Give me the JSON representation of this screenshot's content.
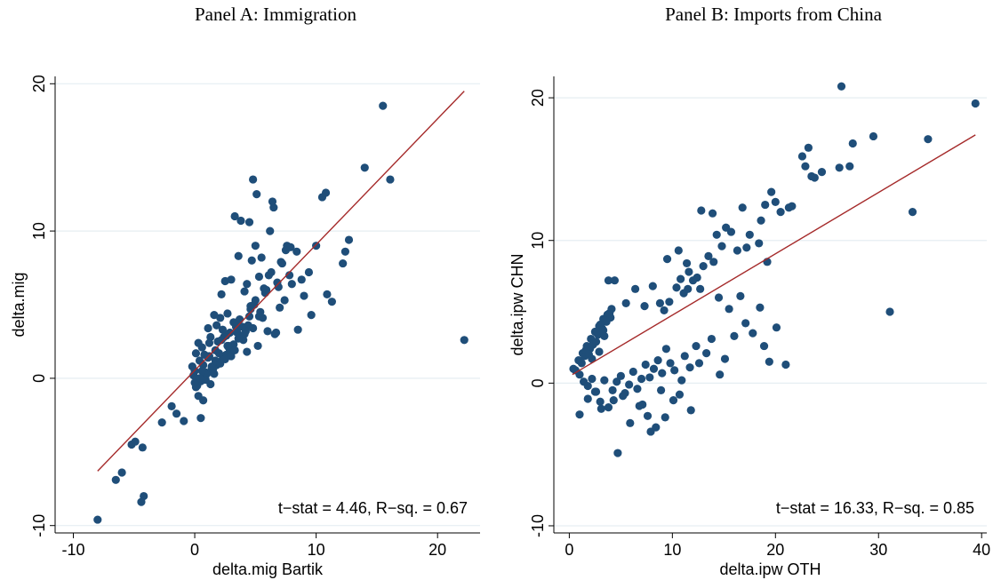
{
  "panels": [
    {
      "title": "Panel A: Immigration"
    },
    {
      "title": "Panel B: Imports from China"
    }
  ],
  "colors": {
    "marker": "#1f4e79",
    "fit": "#a52a2a",
    "grid": "#e6eef2"
  },
  "chart_data": [
    {
      "type": "scatter",
      "title": "Panel A: Immigration",
      "xlabel": "delta.mig Bartik",
      "ylabel": "delta.mig",
      "xlim": [
        -11.5,
        23.5
      ],
      "ylim": [
        -10.5,
        20.5
      ],
      "xticks": [
        -10,
        0,
        10,
        20
      ],
      "yticks": [
        -10,
        0,
        10,
        20
      ],
      "grid": true,
      "annotation": "t−stat = 4.46, R−sq. = 0.67",
      "fit_line": {
        "x": [
          -8,
          22.2
        ],
        "y": [
          -6.3,
          19.5
        ]
      },
      "points": {
        "x": [
          -8,
          -6.5,
          -6,
          -5.2,
          -4.9,
          -4.3,
          -4.2,
          -4.4,
          -2.7,
          -1.9,
          -1.5,
          -0.9,
          0.5,
          15.5,
          16.1,
          14,
          22.2,
          10.8,
          10.5,
          12.7,
          12.4,
          12.2,
          11.3,
          10.9,
          10,
          9.6,
          8.4,
          8,
          7.8,
          7.6,
          7.2,
          6.9,
          6.5,
          6.4,
          6.2,
          5.8,
          5.5,
          5.1,
          5,
          4.8,
          4.7,
          4.5,
          4.3,
          4.1,
          3.8,
          3.6,
          3.3,
          3,
          2.7,
          2.5,
          2.2,
          9,
          8.5,
          7.4,
          7,
          6.6,
          6,
          5.6,
          5.3,
          5.2,
          4.9,
          4.6,
          4.4,
          4.2,
          3.9,
          3.7,
          3.4,
          3.2,
          2.9,
          2.6,
          2.3,
          2.1,
          1.8,
          1.6,
          1.3,
          1.1,
          0.8,
          0.6,
          0.3,
          0.1,
          -0.2,
          0,
          0.4,
          0.7,
          0.9,
          1.2,
          1.4,
          1.7,
          1.9,
          2.4,
          2.8,
          3.1,
          3.5,
          4,
          4.3,
          4.8,
          5.4,
          5.9,
          6.3,
          6.8,
          7.1,
          7.9,
          8.8,
          9.4,
          0.2,
          0.5,
          0.8,
          1,
          1.3,
          1.5,
          1.8,
          2,
          2.3,
          2.6,
          2.9,
          3.2,
          3.6,
          4.1,
          4.5,
          5,
          5.7,
          6.1,
          -0.1,
          0.1,
          0.3,
          0.6,
          0.9,
          1.1,
          1.4,
          1.7,
          2,
          2.2,
          2.5,
          2.8,
          3,
          3.3,
          3.9,
          0,
          0.4,
          0.7,
          1.2,
          1.6,
          2.1,
          2.7,
          3.4,
          4.6,
          5.3,
          6.7,
          7.5
        ],
        "y": [
          -9.6,
          -6.9,
          -6.4,
          -4.5,
          -4.3,
          -4.7,
          -8,
          -8.4,
          -3,
          -1.9,
          -2.4,
          -2.9,
          -2.7,
          18.5,
          13.5,
          14.3,
          2.6,
          12.6,
          12.3,
          9.4,
          8.6,
          7.8,
          5.2,
          5.7,
          9,
          4.3,
          8.6,
          6.4,
          7,
          9,
          7.8,
          6.2,
          11.6,
          12,
          10,
          5.8,
          8.2,
          12.5,
          9,
          13.5,
          8,
          10.6,
          6.4,
          5.9,
          10.7,
          8.3,
          11,
          6.7,
          4.4,
          6.6,
          5.7,
          5.6,
          3.3,
          5.3,
          4.8,
          3,
          3.2,
          4.1,
          4.2,
          2.2,
          5,
          4.7,
          3.6,
          3.2,
          2.8,
          4,
          3.5,
          3.8,
          3.1,
          2.9,
          3.3,
          4.1,
          3.6,
          4.3,
          2.8,
          3.4,
          1.6,
          2.1,
          2.4,
          1.7,
          0.8,
          0.5,
          1.2,
          0.9,
          0.4,
          1.5,
          0.7,
          1.9,
          2.5,
          2.8,
          2.2,
          2,
          3.1,
          2.6,
          1.8,
          3.4,
          4.5,
          6,
          7.2,
          6.5,
          7.9,
          8.9,
          6.7,
          7.2,
          -0.5,
          -0.2,
          0.1,
          0.3,
          -0.4,
          0.6,
          0.9,
          1.1,
          1.3,
          1.6,
          1.9,
          2.3,
          2.7,
          3,
          4.2,
          5.3,
          6.1,
          7,
          0.2,
          -0.6,
          -1.2,
          0.5,
          -0.1,
          1.4,
          0.8,
          1.2,
          1.7,
          2.6,
          1.3,
          2.1,
          1.5,
          1.9,
          3.5,
          -0.3,
          0,
          -1.5,
          2.4,
          0.3,
          1,
          2.2,
          3.7,
          4.9,
          6.9,
          3.1,
          8.7
        ]
      }
    },
    {
      "type": "scatter",
      "title": "Panel B: Imports from China",
      "xlabel": "delta.ipw OTH",
      "ylabel": "delta.ipw CHN",
      "xlim": [
        -1.5,
        40.5
      ],
      "ylim": [
        -10.5,
        21.5
      ],
      "xticks": [
        0,
        10,
        20,
        30,
        40
      ],
      "yticks": [
        -10,
        0,
        10,
        20
      ],
      "grid": true,
      "annotation": "t−stat = 16.33, R−sq. = 0.85",
      "fit_line": {
        "x": [
          0.3,
          39.4
        ],
        "y": [
          0.6,
          17.4
        ]
      },
      "points": {
        "x": [
          39.4,
          26.4,
          29.5,
          34.8,
          33.3,
          31.1,
          27.5,
          26.2,
          27.2,
          24.5,
          23.8,
          23.2,
          22.6,
          22.9,
          23.5,
          21.6,
          21.3,
          20.5,
          20,
          19.6,
          19,
          19.2,
          18.4,
          18.6,
          17.5,
          17.2,
          16.8,
          16.3,
          15.7,
          15.2,
          14.8,
          14.3,
          14,
          13.5,
          13,
          12.4,
          12,
          11.5,
          11.1,
          10.8,
          10.4,
          9.7,
          9.2,
          8.8,
          3.8,
          21,
          20.1,
          18.5,
          16.6,
          15.5,
          14.5,
          12.7,
          11.6,
          11.4,
          19.4,
          17.8,
          18.9,
          17.1,
          16,
          15.1,
          14.6,
          13.8,
          13.3,
          12.6,
          12.3,
          11.7,
          11.2,
          10.9,
          10.2,
          9.8,
          9.4,
          9,
          8.6,
          8.2,
          7.8,
          7.4,
          7,
          6.6,
          6.2,
          5.8,
          5.4,
          5,
          4.6,
          4.2,
          3.8,
          3.4,
          3,
          2.6,
          2.2,
          1.8,
          1.4,
          1,
          0.6,
          0.4,
          0.9,
          1.3,
          1.7,
          2.1,
          2.5,
          2.9,
          3.3,
          3.7,
          4.1,
          1.5,
          2,
          2.4,
          2.8,
          3.2,
          3.6,
          4,
          1.2,
          1.6,
          2.3,
          2.7,
          3.1,
          3.5,
          1.9,
          2.6,
          3,
          3.4,
          3.9,
          2.2,
          2.9,
          3.3,
          4.4,
          5.5,
          6.4,
          7.3,
          8.1,
          9.5,
          10.6,
          12.8,
          13.9,
          7.1,
          7.6,
          8.4,
          9.3,
          10.1,
          10.7,
          11.8,
          4.7,
          5.2,
          5.9,
          6.8,
          7.9,
          8.9,
          1,
          1.8,
          2.5,
          3.1,
          4.3
        ],
        "y": [
          19.6,
          20.8,
          17.3,
          17.1,
          12,
          5,
          16.8,
          15.1,
          15.2,
          14.8,
          14.4,
          16.5,
          15.9,
          15.2,
          14.5,
          12.4,
          12.3,
          12,
          12.7,
          13.4,
          12.5,
          8.5,
          9.8,
          11.4,
          10.4,
          9.5,
          12.3,
          9.3,
          10.6,
          10.9,
          9.6,
          10.4,
          8.5,
          8.9,
          8.2,
          7.4,
          7.2,
          6.6,
          6.3,
          7.3,
          6.7,
          5.7,
          5.1,
          5.6,
          7.2,
          1.3,
          3.9,
          5.3,
          6.1,
          5.2,
          6,
          6.6,
          7.8,
          8.4,
          1.5,
          3.5,
          2.6,
          4.2,
          3.3,
          1.7,
          0.6,
          3.1,
          2.1,
          1.4,
          2.6,
          1.1,
          1.9,
          0.2,
          0.9,
          1.4,
          2.4,
          0.7,
          1.6,
          1,
          0.4,
          1.3,
          0.3,
          -0.4,
          0.8,
          -0.1,
          -0.7,
          0.5,
          0.1,
          -0.5,
          -1.7,
          0.2,
          -1.3,
          -0.6,
          0.3,
          -0.2,
          0.1,
          0.6,
          0.9,
          1,
          1.6,
          2.1,
          2.6,
          3.1,
          3.6,
          4,
          4.5,
          4.8,
          5.2,
          1.9,
          2.4,
          2.9,
          3.4,
          3.8,
          4.3,
          4.6,
          1.4,
          2.3,
          2.7,
          3.5,
          3.9,
          4.4,
          2,
          2.9,
          4.1,
          3.3,
          4.9,
          1.7,
          2.2,
          3.7,
          7.2,
          5.6,
          6.6,
          5.4,
          6.8,
          8.7,
          9.3,
          12.1,
          11.9,
          -1.5,
          -2.3,
          -3.1,
          -2.4,
          -1.2,
          -0.8,
          -1.9,
          -4.9,
          -0.9,
          -2.8,
          -1.6,
          -3.4,
          -0.5,
          -2.2,
          -1.1,
          -0.6,
          -1.8,
          -1.2
        ]
      }
    }
  ]
}
